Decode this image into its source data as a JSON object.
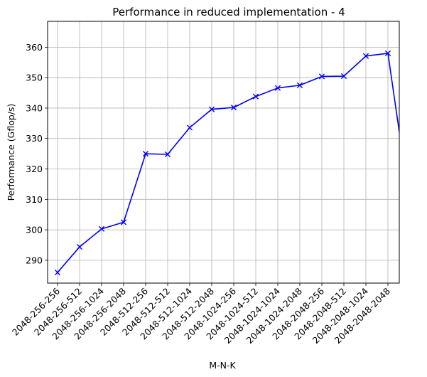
{
  "chart_data": {
    "type": "line",
    "title": "Performance in reduced implementation - 4",
    "xlabel": "M-N-K",
    "ylabel": "Performance (Gflop/s)",
    "categories": [
      "2048-256-256",
      "2048-256-512",
      "2048-256-1024",
      "2048-256-2048",
      "2048-512-256",
      "2048-512-512",
      "2048-512-1024",
      "2048-512-2048",
      "2048-1024-256",
      "2048-1024-512",
      "2048-1024-1024",
      "2048-1024-2048",
      "2048-2048-256",
      "2048-2048-512",
      "2048-2048-1024",
      "2048-2048-2048"
    ],
    "series": [
      {
        "values": [
          286.0,
          294.4,
          300.3,
          302.5,
          325.0,
          324.8,
          333.6,
          339.6,
          340.2,
          343.8,
          346.6,
          347.5,
          350.4,
          350.5,
          357.1,
          358.0
        ],
        "color": "#0000ff",
        "marker": "x"
      }
    ],
    "trailing_value": 308.0,
    "ylim": [
      282.5,
      368.5
    ],
    "yticks": [
      290,
      300,
      310,
      320,
      330,
      340,
      350,
      360
    ],
    "grid": true
  }
}
